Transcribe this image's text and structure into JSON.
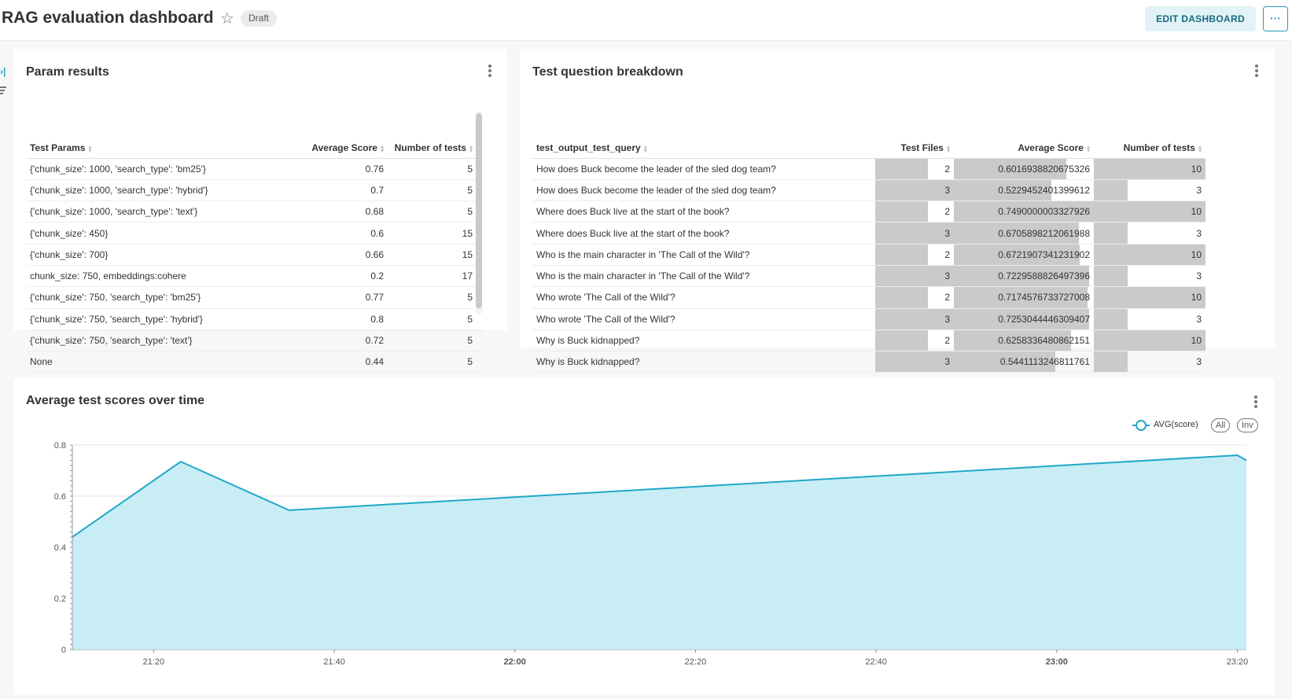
{
  "header": {
    "title": "RAG evaluation dashboard",
    "badge": "Draft",
    "edit_button": "EDIT DASHBOARD",
    "more_button": "···"
  },
  "param_results": {
    "title": "Param results",
    "columns": [
      "Test Params",
      "Average Score",
      "Number of tests"
    ],
    "rows": [
      [
        "{'chunk_size': 1000, 'search_type': 'bm25'}",
        "0.76",
        "5"
      ],
      [
        "{'chunk_size': 1000, 'search_type': 'hybrid'}",
        "0.7",
        "5"
      ],
      [
        "{'chunk_size': 1000, 'search_type': 'text'}",
        "0.68",
        "5"
      ],
      [
        "{'chunk_size': 450}",
        "0.6",
        "15"
      ],
      [
        "{'chunk_size': 700}",
        "0.66",
        "15"
      ],
      [
        "chunk_size: 750, embeddings:cohere",
        "0.2",
        "17"
      ],
      [
        "{'chunk_size': 750, 'search_type': 'bm25'}",
        "0.77",
        "5"
      ],
      [
        "{'chunk_size': 750, 'search_type': 'hybrid'}",
        "0.8",
        "5"
      ],
      [
        "{'chunk_size': 750, 'search_type': 'text'}",
        "0.72",
        "5"
      ],
      [
        "None",
        "0.44",
        "5"
      ]
    ]
  },
  "test_breakdown": {
    "title": "Test question breakdown",
    "columns": [
      "test_output_test_query",
      "Test Files",
      "Average Score",
      "Number of tests"
    ],
    "rows": [
      [
        "How does Buck become the leader of the sled dog team?",
        "2",
        "0.6016938820675326",
        "10"
      ],
      [
        "How does Buck become the leader of the sled dog team?",
        "3",
        "0.5229452401399612",
        "3"
      ],
      [
        "Where does Buck live at the start of the book?",
        "2",
        "0.7490000003327926",
        "10"
      ],
      [
        "Where does Buck live at the start of the book?",
        "3",
        "0.6705898212061988",
        "3"
      ],
      [
        "Who is the main character in 'The Call of the Wild'?",
        "2",
        "0.6721907341231902",
        "10"
      ],
      [
        "Who is the main character in 'The Call of the Wild'?",
        "3",
        "0.7229588826497396",
        "3"
      ],
      [
        "Who wrote 'The Call of the Wild'?",
        "2",
        "0.7174576733727008",
        "10"
      ],
      [
        "Who wrote 'The Call of the Wild'?",
        "3",
        "0.7253044446309407",
        "3"
      ],
      [
        "Why is Buck kidnapped?",
        "2",
        "0.6258336480862151",
        "10"
      ],
      [
        "Why is Buck kidnapped?",
        "3",
        "0.5441113246811761",
        "3"
      ]
    ]
  },
  "line_card": {
    "title": "Average test scores over time",
    "legend_all": "All",
    "legend_inv": "Inv"
  },
  "chart_data": {
    "type": "area",
    "title": "Average test scores over time",
    "x": [
      "21:11",
      "21:23",
      "21:35",
      "23:20",
      "23:21"
    ],
    "series": [
      {
        "name": "AVG(score)",
        "values": [
          0.44,
          0.735,
          0.545,
          0.76,
          0.74
        ]
      }
    ],
    "xticks": [
      "21:20",
      "21:40",
      "22:00",
      "22:20",
      "22:40",
      "23:00",
      "23:20"
    ],
    "xticks_bold": [
      "22:00",
      "23:00"
    ],
    "yticks": [
      "0",
      "0.2",
      "0.4",
      "0.6",
      "0.8"
    ],
    "ylim": [
      0,
      0.8
    ],
    "grid": true,
    "legend_position": "top-right",
    "colors": {
      "line": "#20a7c9",
      "fill": "#c9edf5"
    }
  }
}
